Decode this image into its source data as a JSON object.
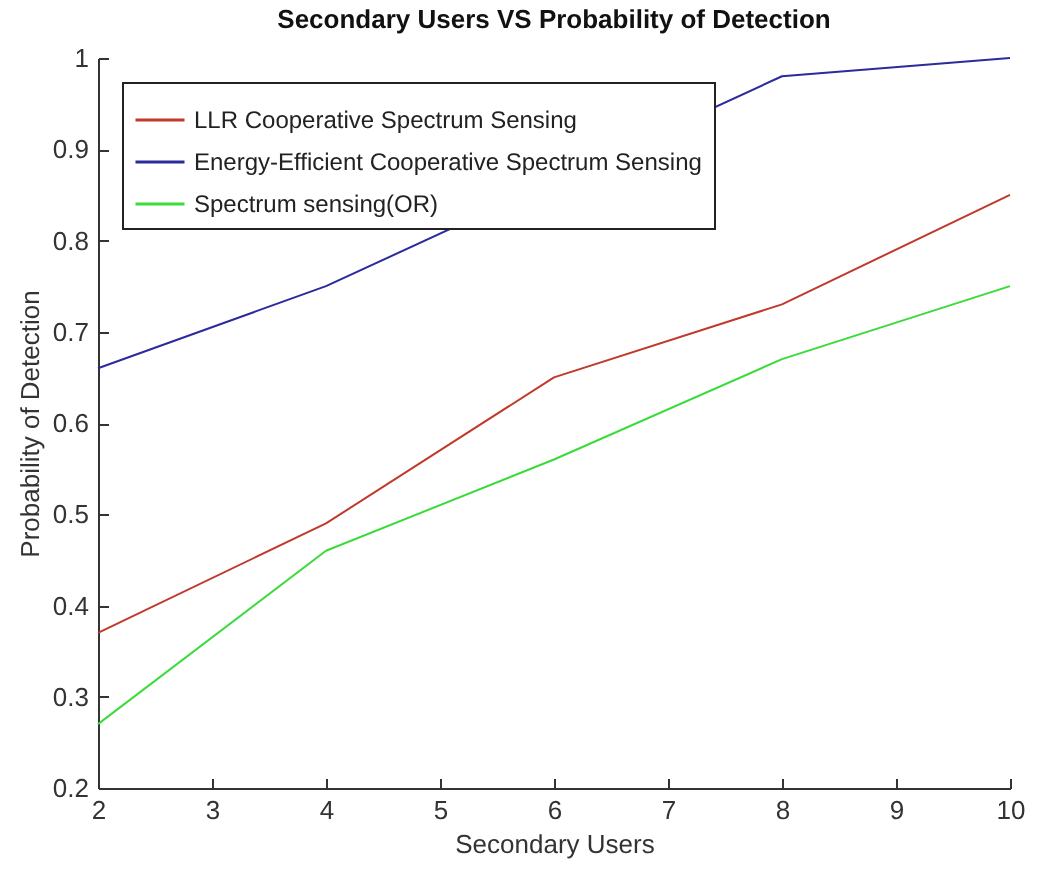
{
  "chart_data": {
    "type": "line",
    "title": "Secondary Users VS Probability of Detection",
    "xlabel": "Secondary Users",
    "ylabel": "Probability of Detection",
    "x": [
      2,
      4,
      6,
      8,
      10
    ],
    "series": [
      {
        "name": "LLR Cooperative Spectrum Sensing",
        "color": "#c0392b",
        "values": [
          0.37,
          0.49,
          0.65,
          0.73,
          0.85
        ]
      },
      {
        "name": "Energy-Efficient Cooperative Spectrum Sensing",
        "color": "#2b2b9b",
        "values": [
          0.66,
          0.75,
          null,
          0.98,
          1.0
        ]
      },
      {
        "name": "Spectrum sensing(OR)",
        "color": "#3adb3a",
        "values": [
          0.27,
          0.46,
          0.56,
          0.67,
          0.75
        ]
      }
    ],
    "xlim": [
      2,
      10
    ],
    "xticks": [
      2,
      3,
      4,
      5,
      6,
      7,
      8,
      9,
      10
    ],
    "ylim": [
      0.2,
      1
    ],
    "yticks": [
      0.2,
      0.3,
      0.4,
      0.5,
      0.6,
      0.7,
      0.8,
      0.9,
      1
    ],
    "grid": false,
    "legend": "top left"
  }
}
